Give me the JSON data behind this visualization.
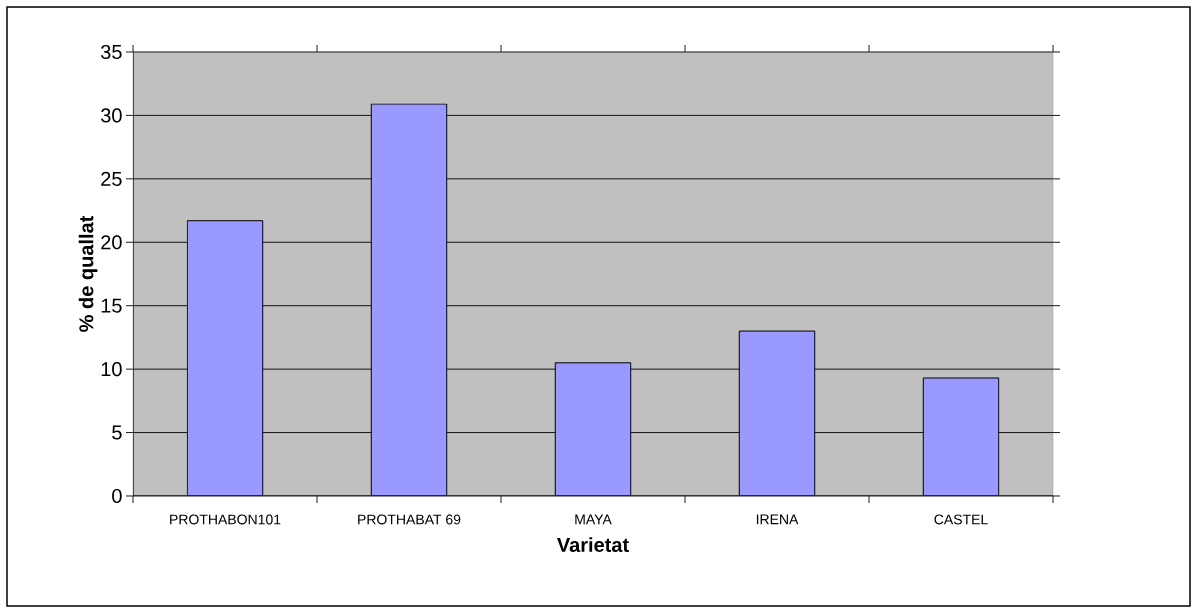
{
  "chart_data": {
    "type": "bar",
    "xlabel": "Varietat",
    "ylabel": "% de quallat",
    "categories": [
      "PROTHABON101",
      "PROTHABAT 69",
      "MAYA",
      "IRENA",
      "CASTEL"
    ],
    "values": [
      21.7,
      30.9,
      10.5,
      13.0,
      9.3
    ],
    "color": "#9999ff",
    "ylim": [
      0,
      35
    ],
    "yticks": [
      0,
      5,
      10,
      15,
      20,
      25,
      30,
      35
    ],
    "grid": "y"
  }
}
